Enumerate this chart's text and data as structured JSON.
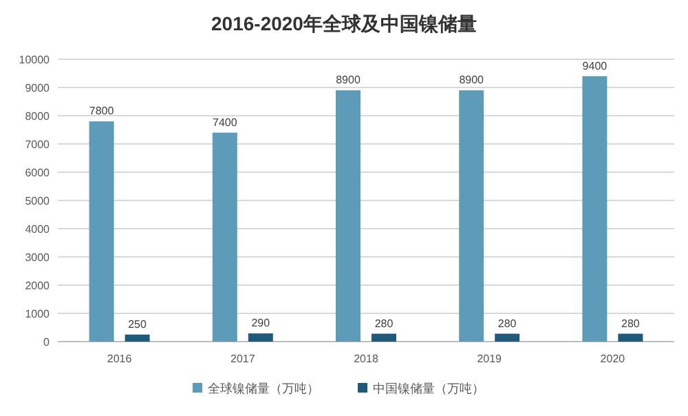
{
  "chart_data": {
    "type": "bar",
    "title": "2016-2020年全球及中国镍储量",
    "categories": [
      "2016",
      "2017",
      "2018",
      "2019",
      "2020"
    ],
    "series": [
      {
        "name": "全球镍储量（万吨）",
        "color": "#5e9bb8",
        "values": [
          7800,
          7400,
          8900,
          8900,
          9400
        ]
      },
      {
        "name": "中国镍储量（万吨）",
        "color": "#1f5b78",
        "values": [
          250,
          290,
          280,
          280,
          280
        ]
      }
    ],
    "ylim": [
      0,
      10000
    ],
    "yticks": [
      0,
      1000,
      2000,
      3000,
      4000,
      5000,
      6000,
      7000,
      8000,
      9000,
      10000
    ],
    "grid": "y",
    "legend": "bottom",
    "data_labels": true
  }
}
